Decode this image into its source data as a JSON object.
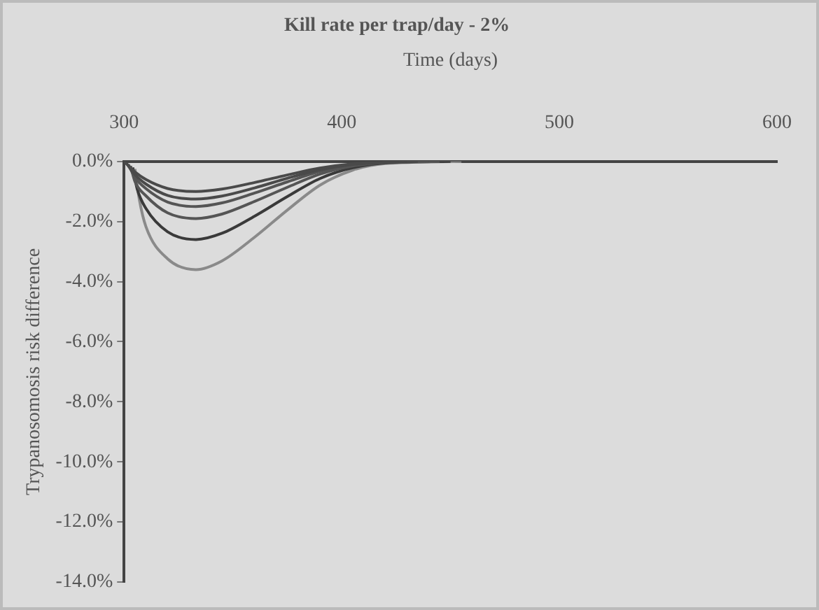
{
  "chart_data": {
    "type": "line",
    "title": "Kill rate per trap/day - 2%",
    "xlabel": "Time (days)",
    "ylabel": "Trypanosomosis risk difference",
    "series": [
      {
        "color": "#4a4a4a",
        "x": [
          300,
          305,
          310,
          320,
          333,
          345,
          360,
          375,
          390,
          405,
          420,
          430
        ],
        "values": [
          0,
          -0.35,
          -0.6,
          -0.9,
          -1,
          -0.92,
          -0.7,
          -0.45,
          -0.22,
          -0.08,
          -0.02,
          0
        ]
      },
      {
        "color": "#4a4a4a",
        "x": [
          301,
          305,
          310,
          320,
          333,
          345,
          360,
          375,
          390,
          405,
          420,
          435
        ],
        "values": [
          -0.05,
          -0.44,
          -0.75,
          -1.13,
          -1.25,
          -1.15,
          -0.88,
          -0.56,
          -0.28,
          -0.1,
          -0.03,
          0
        ]
      },
      {
        "color": "#555555",
        "x": [
          302,
          305,
          310,
          320,
          333,
          345,
          360,
          375,
          390,
          405,
          420,
          440
        ],
        "values": [
          -0.1,
          -0.53,
          -0.9,
          -1.35,
          -1.5,
          -1.38,
          -1.05,
          -0.68,
          -0.33,
          -0.12,
          -0.03,
          0
        ]
      },
      {
        "color": "#555555",
        "x": [
          303,
          305,
          310,
          320,
          333,
          345,
          360,
          375,
          390,
          405,
          420,
          445
        ],
        "values": [
          -0.15,
          -0.67,
          -1.14,
          -1.71,
          -1.9,
          -1.75,
          -1.33,
          -0.86,
          -0.42,
          -0.15,
          -0.04,
          0
        ]
      },
      {
        "color": "#3a3a3a",
        "x": [
          304,
          306,
          310,
          320,
          333,
          345,
          360,
          375,
          390,
          405,
          420,
          450
        ],
        "values": [
          -0.2,
          -0.91,
          -1.56,
          -2.34,
          -2.6,
          -2.39,
          -1.82,
          -1.17,
          -0.57,
          -0.21,
          -0.05,
          0
        ]
      },
      {
        "color": "#8a8a8a",
        "x": [
          305,
          307,
          310,
          320,
          333,
          345,
          360,
          375,
          390,
          405,
          420,
          455
        ],
        "values": [
          -0.25,
          -1.26,
          -2.16,
          -3.24,
          -3.6,
          -3.31,
          -2.52,
          -1.62,
          -0.79,
          -0.29,
          -0.07,
          0
        ]
      }
    ],
    "xlim": [
      300,
      600
    ],
    "xticks": [
      300,
      400,
      500,
      600
    ],
    "ylim": [
      -14,
      0
    ],
    "yticks": [
      {
        "value": 0,
        "label": "0.0%"
      },
      {
        "value": -2,
        "label": "-2.0%"
      },
      {
        "value": -4,
        "label": "-4.0%"
      },
      {
        "value": -6,
        "label": "-6.0%"
      },
      {
        "value": -8,
        "label": "-8.0%"
      },
      {
        "value": -10,
        "label": "-10.0%"
      },
      {
        "value": -12,
        "label": "-12.0%"
      },
      {
        "value": -14,
        "label": "-14.0%"
      }
    ],
    "grid": false,
    "legend": false,
    "marker": "none",
    "line_style": "solid"
  }
}
